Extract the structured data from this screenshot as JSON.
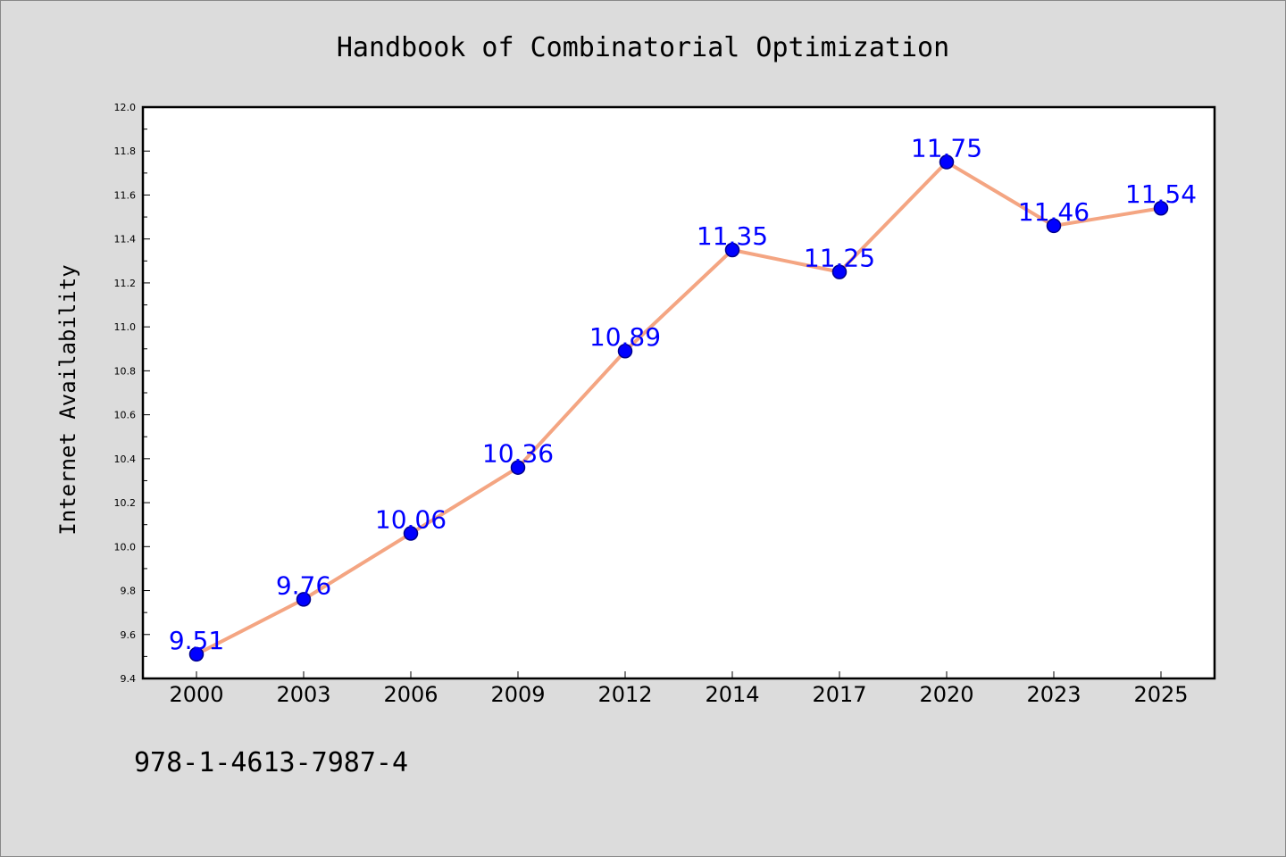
{
  "footer": {
    "isbn": "978-1-4613-7987-4"
  },
  "colors": {
    "background": "#dcdcdc",
    "plot_background": "#ffffff",
    "line": "#f4a582",
    "marker_fill": "#0000ff",
    "marker_edge": "#00008b",
    "label": "#0000ff"
  },
  "chart_data": {
    "type": "line",
    "title": "Handbook of Combinatorial Optimization",
    "xlabel": "",
    "ylabel": "Internet Availability",
    "categories": [
      "2000",
      "2003",
      "2006",
      "2009",
      "2012",
      "2014",
      "2017",
      "2020",
      "2023",
      "2025"
    ],
    "series": [
      {
        "values": [
          9.51,
          9.76,
          10.06,
          10.36,
          10.89,
          11.35,
          11.25,
          11.75,
          11.46,
          11.54
        ],
        "labels": [
          "9.51",
          "9.76",
          "10.06",
          "10.36",
          "10.89",
          "11.35",
          "11.25",
          "11.75",
          "11.46",
          "11.54"
        ]
      }
    ],
    "ylim": [
      9.4,
      12.0
    ],
    "yticks": [
      "9.4",
      "9.6",
      "9.8",
      "10.0",
      "10.2",
      "10.4",
      "10.6",
      "10.8",
      "11.0",
      "11.2",
      "11.4",
      "11.6",
      "11.8",
      "12.0"
    ],
    "grid": false,
    "legend": "none"
  }
}
